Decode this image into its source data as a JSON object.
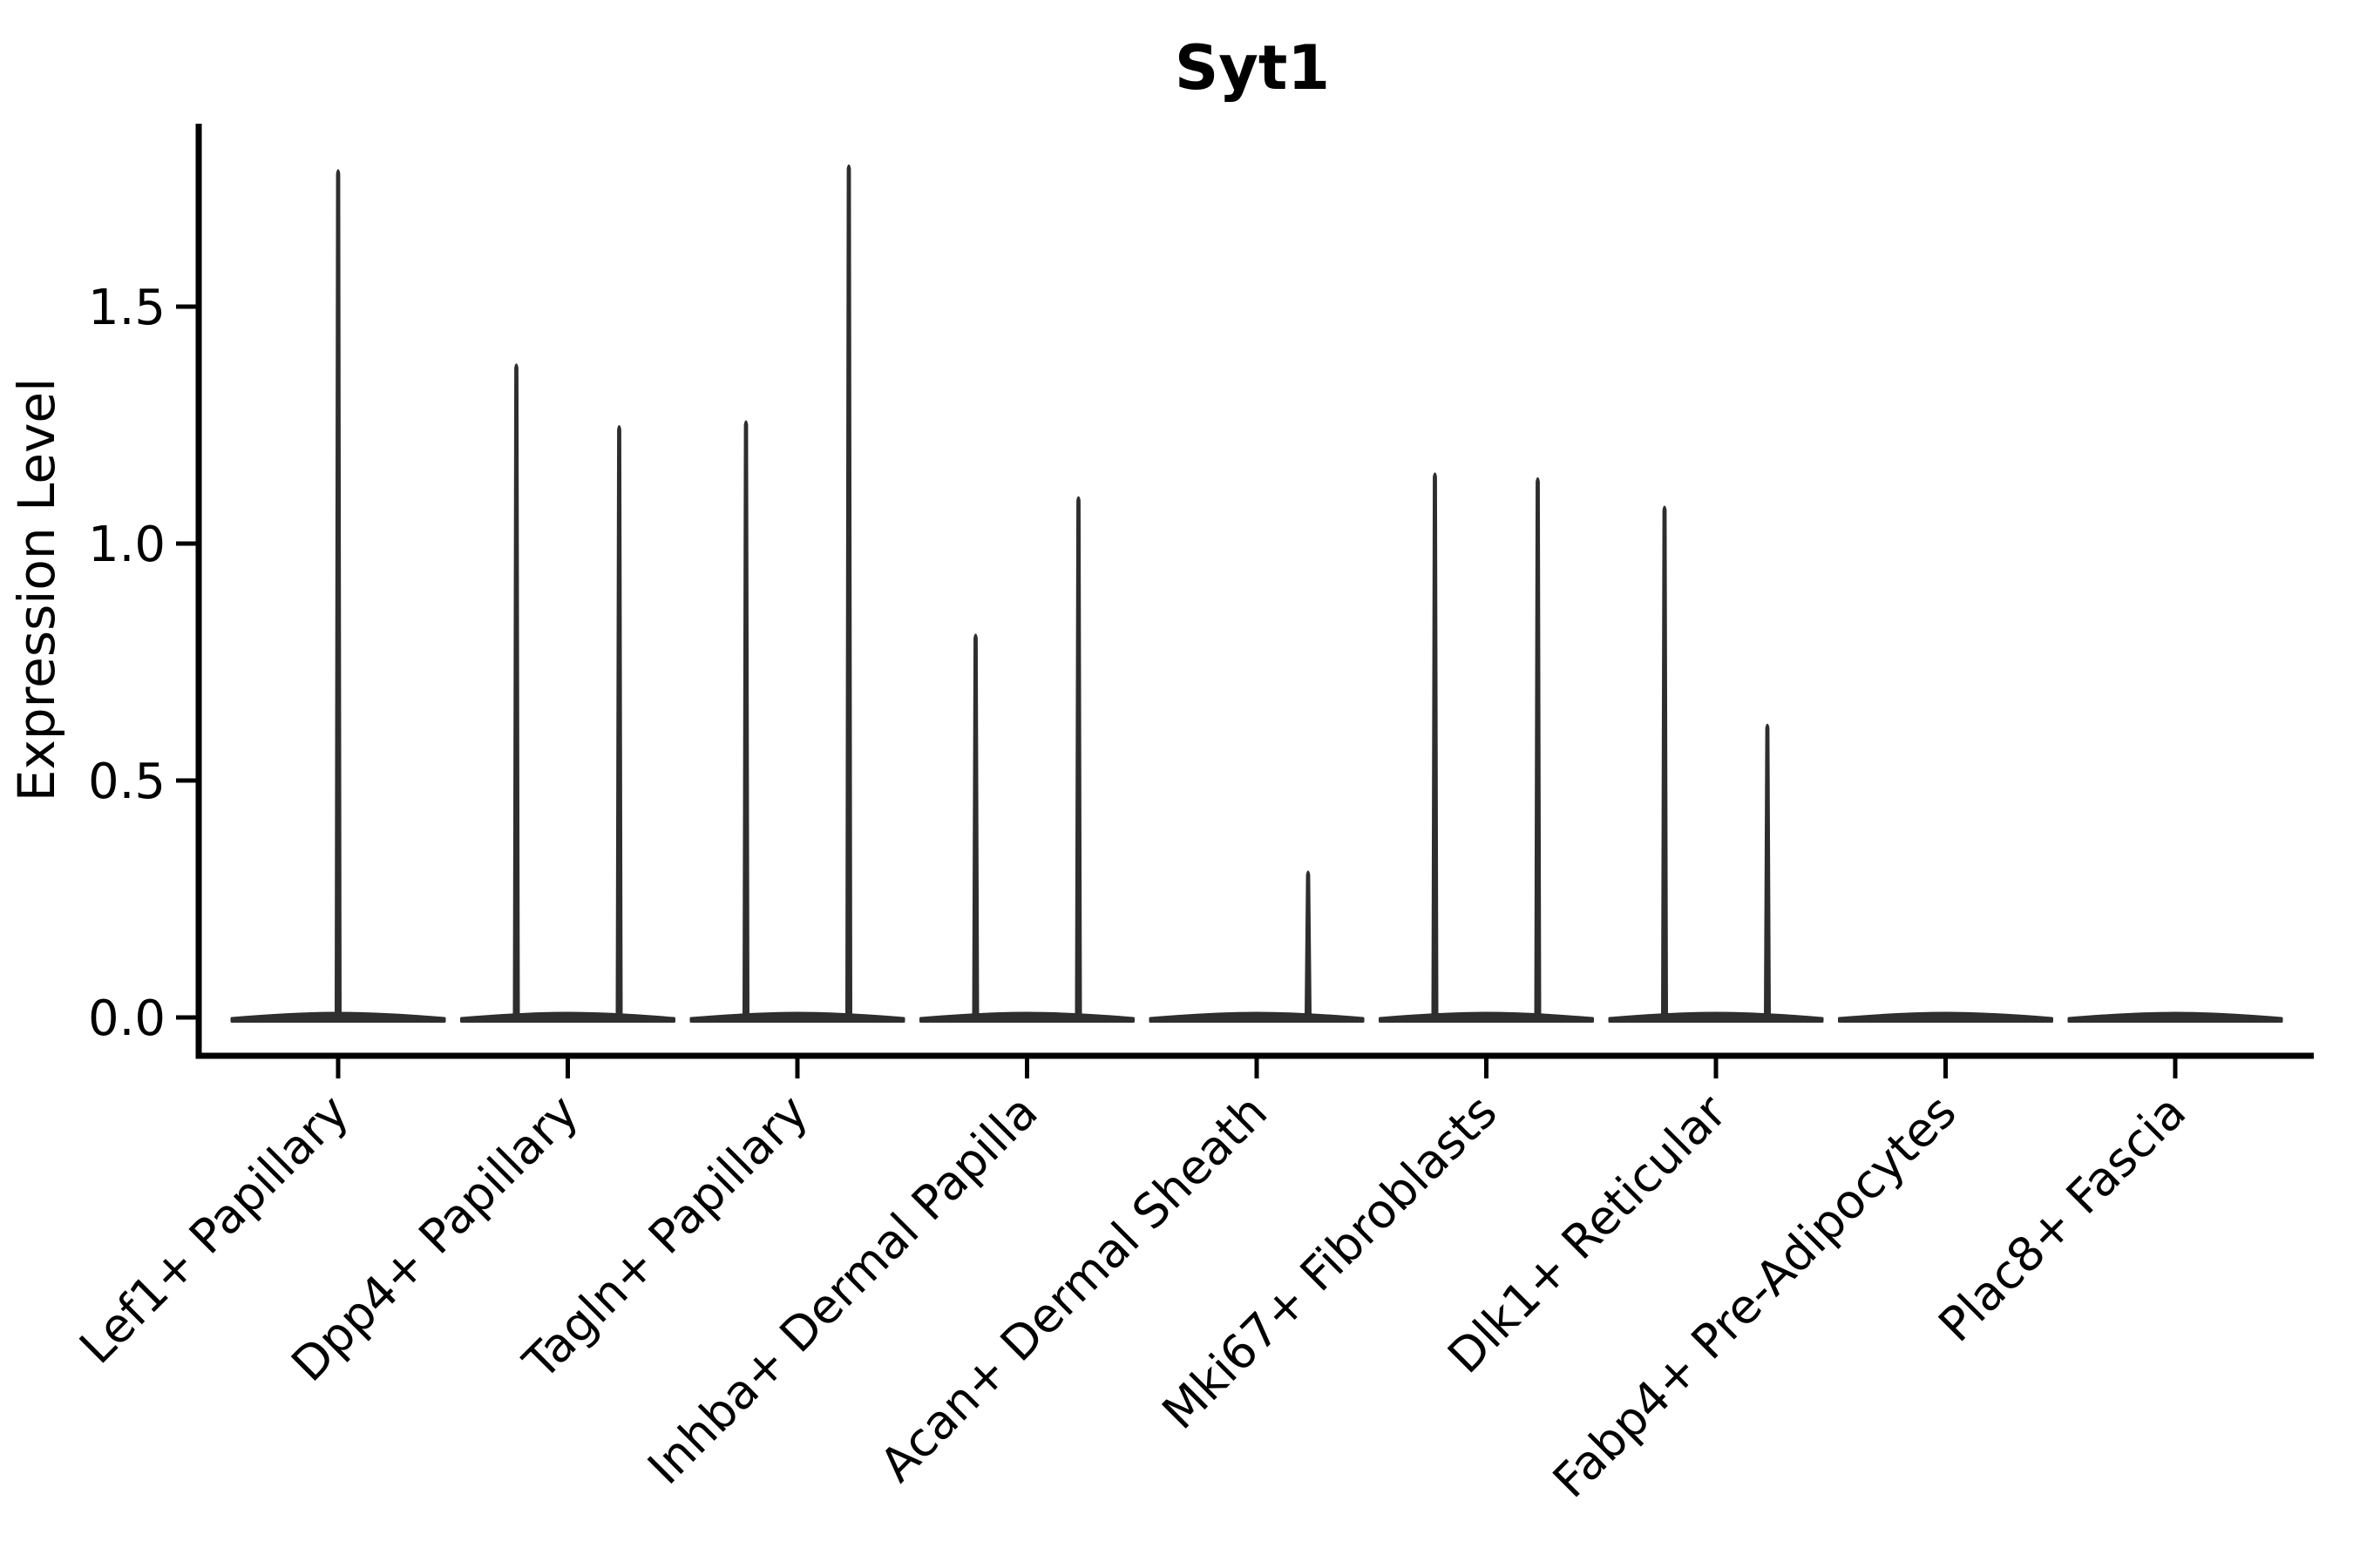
{
  "figure": {
    "background_color": "#ffffff",
    "text_color": "#000000",
    "violin_color": "#2e2e2e",
    "spine_color": "#000000"
  },
  "chart_data": {
    "type": "violin",
    "title": "Syt1",
    "xlabel": "",
    "ylabel": "Expression Level",
    "yticks": [
      "0.0",
      "0.5",
      "1.0",
      "1.5"
    ],
    "ytick_values": [
      0.0,
      0.5,
      1.0,
      1.5
    ],
    "ylim": [
      -0.08,
      1.89
    ],
    "grid": false,
    "legend": null,
    "xtick_rotation_deg": 45,
    "categories": [
      "Lef1+ Papillary",
      "Dpp4+ Papillary",
      "Tagln+ Papillary",
      "Inhba+ Dermal Papilla",
      "Acan+ Dermal Sheath",
      "Mki67+ Fibroblasts",
      "Dlk1+ Reticular",
      "Fabp4+ Pre-Adipocytes",
      "Plac8+ Fascia"
    ],
    "violins": [
      {
        "category": "Lef1+ Papillary",
        "spikes": [
          {
            "position": "center",
            "max_expression": 1.79
          }
        ]
      },
      {
        "category": "Dpp4+ Papillary",
        "spikes": [
          {
            "position": "left",
            "max_expression": 1.38
          },
          {
            "position": "right",
            "max_expression": 1.25
          }
        ]
      },
      {
        "category": "Tagln+ Papillary",
        "spikes": [
          {
            "position": "left",
            "max_expression": 1.26
          },
          {
            "position": "right",
            "max_expression": 1.8
          }
        ]
      },
      {
        "category": "Inhba+ Dermal Papilla",
        "spikes": [
          {
            "position": "left",
            "max_expression": 0.81
          },
          {
            "position": "right",
            "max_expression": 1.1
          }
        ]
      },
      {
        "category": "Acan+ Dermal Sheath",
        "spikes": [
          {
            "position": "right",
            "max_expression": 0.31
          }
        ]
      },
      {
        "category": "Mki67+ Fibroblasts",
        "spikes": [
          {
            "position": "left",
            "max_expression": 1.15
          },
          {
            "position": "right",
            "max_expression": 1.14
          }
        ]
      },
      {
        "category": "Dlk1+ Reticular",
        "spikes": [
          {
            "position": "left",
            "max_expression": 1.08
          },
          {
            "position": "right",
            "max_expression": 0.62
          }
        ]
      },
      {
        "category": "Fabp4+ Pre-Adipocytes",
        "spikes": []
      },
      {
        "category": "Plac8+ Fascia",
        "spikes": []
      }
    ]
  }
}
